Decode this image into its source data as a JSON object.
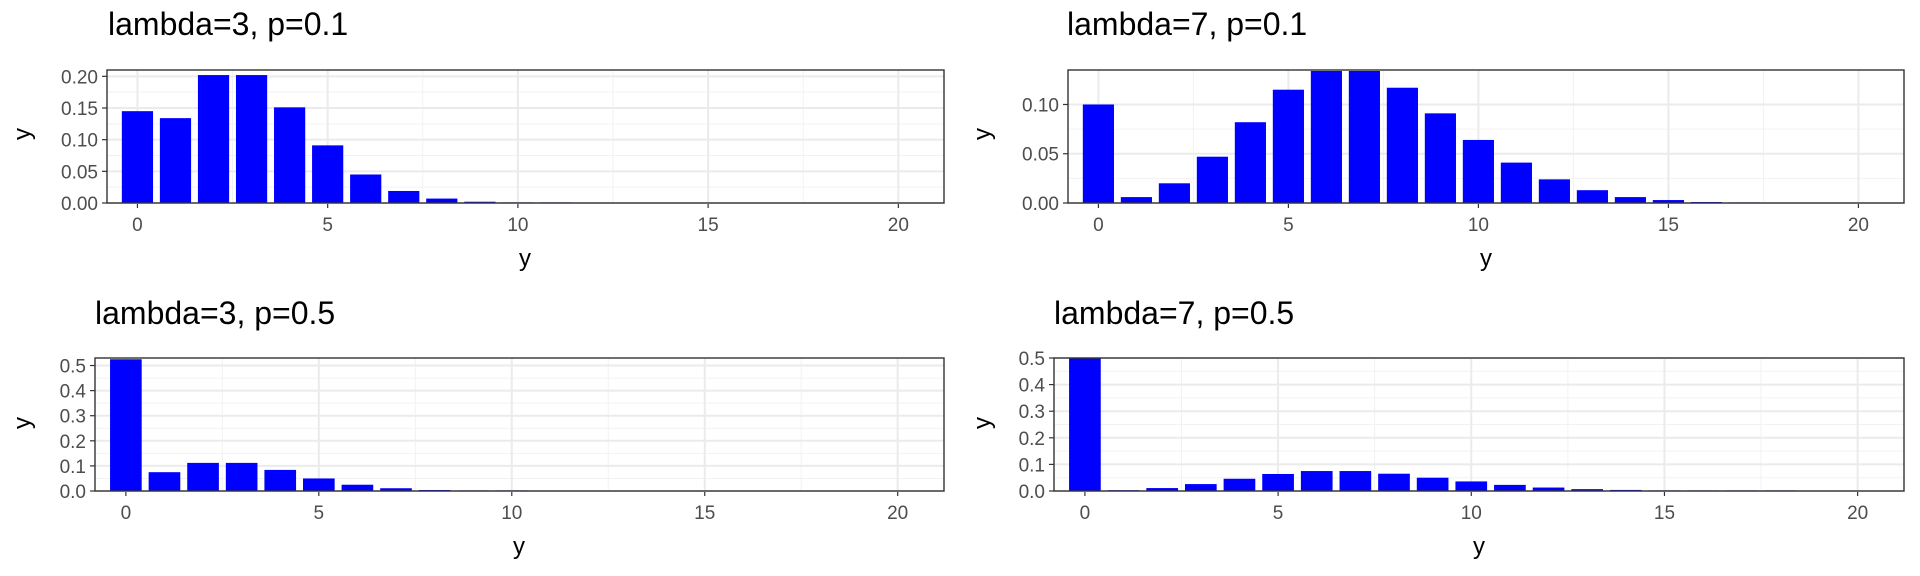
{
  "chart_data": [
    {
      "type": "bar",
      "title": "lambda=3, p=0.1",
      "xlabel": "y",
      "ylabel": "y",
      "xlim": [
        -0.8,
        21.2
      ],
      "ylim": [
        0,
        0.21
      ],
      "xticks": [
        0,
        5,
        10,
        15,
        20
      ],
      "yticks": [
        "0.00",
        "0.05",
        "0.10",
        "0.15",
        "0.20"
      ],
      "x": [
        0,
        1,
        2,
        3,
        4,
        5,
        6,
        7,
        8,
        9,
        10,
        11,
        12,
        13,
        14,
        15,
        16,
        17,
        18,
        19,
        20
      ],
      "values": [
        0.145,
        0.134,
        0.202,
        0.202,
        0.151,
        0.091,
        0.045,
        0.019,
        0.007,
        0.002,
        0.0005,
        0.0001,
        0,
        0,
        0,
        0,
        0,
        0,
        0,
        0,
        0
      ],
      "bar_color": "#0000ff",
      "grid": true
    },
    {
      "type": "bar",
      "title": "lambda=7, p=0.1",
      "xlabel": "y",
      "ylabel": "y",
      "xlim": [
        -0.8,
        21.2
      ],
      "ylim": [
        0,
        0.135
      ],
      "xticks": [
        0,
        5,
        10,
        15,
        20
      ],
      "yticks": [
        "0.00",
        "0.05",
        "0.10"
      ],
      "x": [
        0,
        1,
        2,
        3,
        4,
        5,
        6,
        7,
        8,
        9,
        10,
        11,
        12,
        13,
        14,
        15,
        16,
        17,
        18,
        19,
        20
      ],
      "values": [
        0.1,
        0.006,
        0.02,
        0.047,
        0.082,
        0.115,
        0.134,
        0.134,
        0.117,
        0.091,
        0.064,
        0.041,
        0.024,
        0.013,
        0.006,
        0.003,
        0.001,
        0.0005,
        0,
        0,
        0
      ],
      "bar_color": "#0000ff",
      "grid": true
    },
    {
      "type": "bar",
      "title": "lambda=3, p=0.5",
      "xlabel": "y",
      "ylabel": "y",
      "xlim": [
        -0.8,
        21.2
      ],
      "ylim": [
        0,
        0.53
      ],
      "xticks": [
        0,
        5,
        10,
        15,
        20
      ],
      "yticks": [
        "0.0",
        "0.1",
        "0.2",
        "0.3",
        "0.4",
        "0.5"
      ],
      "x": [
        0,
        1,
        2,
        3,
        4,
        5,
        6,
        7,
        8,
        9,
        10,
        11,
        12,
        13,
        14,
        15,
        16,
        17,
        18,
        19,
        20
      ],
      "values": [
        0.525,
        0.075,
        0.112,
        0.112,
        0.084,
        0.05,
        0.025,
        0.011,
        0.004,
        0.001,
        0.0003,
        0,
        0,
        0,
        0,
        0,
        0,
        0,
        0,
        0,
        0
      ],
      "bar_color": "#0000ff",
      "grid": true
    },
    {
      "type": "bar",
      "title": "lambda=7, p=0.5",
      "xlabel": "y",
      "ylabel": "y",
      "xlim": [
        -0.8,
        21.2
      ],
      "ylim": [
        0,
        0.5
      ],
      "xticks": [
        0,
        5,
        10,
        15,
        20
      ],
      "yticks": [
        "0.0",
        "0.1",
        "0.2",
        "0.3",
        "0.4",
        "0.5"
      ],
      "x": [
        0,
        1,
        2,
        3,
        4,
        5,
        6,
        7,
        8,
        9,
        10,
        11,
        12,
        13,
        14,
        15,
        16,
        17,
        18,
        19,
        20
      ],
      "values": [
        0.5,
        0.003,
        0.011,
        0.026,
        0.046,
        0.064,
        0.075,
        0.075,
        0.065,
        0.05,
        0.036,
        0.023,
        0.013,
        0.007,
        0.004,
        0.002,
        0.001,
        0.0004,
        0.0001,
        0,
        0
      ],
      "bar_color": "#0000ff",
      "grid": true
    }
  ]
}
